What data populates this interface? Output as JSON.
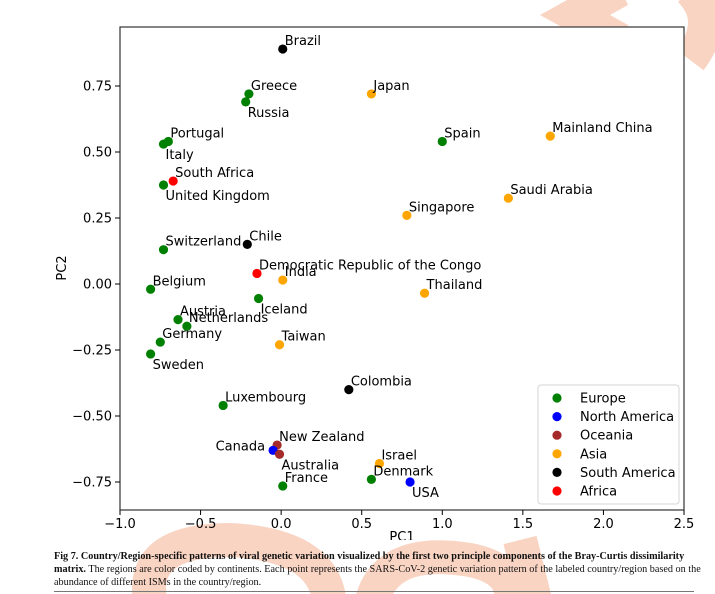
{
  "chart_data": {
    "type": "scatter",
    "title": "",
    "xlabel": "PC1",
    "ylabel": "PC2",
    "xlim": [
      -1.0,
      2.5
    ],
    "ylim": [
      -0.85,
      0.97
    ],
    "xticks": [
      -1.0,
      -0.5,
      0.0,
      0.5,
      1.0,
      1.5,
      2.0,
      2.5
    ],
    "xtick_labels": [
      "−1.0",
      "−0.5",
      "0.0",
      "0.5",
      "1.0",
      "1.5",
      "2.0",
      "2.5"
    ],
    "yticks": [
      0.75,
      0.5,
      0.25,
      0.0,
      -0.25,
      -0.5,
      -0.75
    ],
    "ytick_labels": [
      "0.75",
      "0.50",
      "0.25",
      "0.00",
      "−0.25",
      "−0.50",
      "−0.75"
    ],
    "grid": false,
    "legend_position": "bottom-right",
    "legend": [
      {
        "name": "Europe",
        "color": "#008000"
      },
      {
        "name": "North America",
        "color": "#0000ff"
      },
      {
        "name": "Oceania",
        "color": "#a52a2a"
      },
      {
        "name": "Asia",
        "color": "#ffa500"
      },
      {
        "name": "South America",
        "color": "#000000"
      },
      {
        "name": "Africa",
        "color": "#ff0000"
      }
    ],
    "points": [
      {
        "label": "Brazil",
        "x": 0.01,
        "y": 0.89,
        "group": "South America",
        "label_pos": "ur"
      },
      {
        "label": "Greece",
        "x": -0.2,
        "y": 0.72,
        "group": "Europe",
        "label_pos": "ur"
      },
      {
        "label": "Russia",
        "x": -0.22,
        "y": 0.69,
        "group": "Europe",
        "label_pos": "lr"
      },
      {
        "label": "Japan",
        "x": 0.56,
        "y": 0.72,
        "group": "Asia",
        "label_pos": "ur"
      },
      {
        "label": "Spain",
        "x": 1.0,
        "y": 0.54,
        "group": "Europe",
        "label_pos": "ur"
      },
      {
        "label": "Mainland China",
        "x": 1.67,
        "y": 0.56,
        "group": "Asia",
        "label_pos": "ur"
      },
      {
        "label": "Portugal",
        "x": -0.7,
        "y": 0.54,
        "group": "Europe",
        "label_pos": "ur"
      },
      {
        "label": "Italy",
        "x": -0.73,
        "y": 0.53,
        "group": "Europe",
        "label_pos": "lr"
      },
      {
        "label": "South Africa",
        "x": -0.67,
        "y": 0.39,
        "group": "Africa",
        "label_pos": "ur"
      },
      {
        "label": "United Kingdom",
        "x": -0.73,
        "y": 0.375,
        "group": "Europe",
        "label_pos": "lr"
      },
      {
        "label": "Singapore",
        "x": 0.78,
        "y": 0.26,
        "group": "Asia",
        "label_pos": "ur"
      },
      {
        "label": "Saudi Arabia",
        "x": 1.41,
        "y": 0.325,
        "group": "Asia",
        "label_pos": "ur"
      },
      {
        "label": "Switzerland",
        "x": -0.73,
        "y": 0.13,
        "group": "Europe",
        "label_pos": "ur"
      },
      {
        "label": "Chile",
        "x": -0.21,
        "y": 0.15,
        "group": "South America",
        "label_pos": "ur"
      },
      {
        "label": "Democratic Republic of the Congo",
        "x": -0.15,
        "y": 0.04,
        "group": "Africa",
        "label_pos": "ur"
      },
      {
        "label": "India",
        "x": 0.01,
        "y": 0.015,
        "group": "Asia",
        "label_pos": "ur"
      },
      {
        "label": "Belgium",
        "x": -0.81,
        "y": -0.02,
        "group": "Europe",
        "label_pos": "ur"
      },
      {
        "label": "Iceland",
        "x": -0.14,
        "y": -0.055,
        "group": "Europe",
        "label_pos": "lr"
      },
      {
        "label": "Thailand",
        "x": 0.89,
        "y": -0.035,
        "group": "Asia",
        "label_pos": "ur"
      },
      {
        "label": "Austria",
        "x": -0.64,
        "y": -0.135,
        "group": "Europe",
        "label_pos": "ur"
      },
      {
        "label": "Netherlands",
        "x": -0.585,
        "y": -0.16,
        "group": "Europe",
        "label_pos": "ur"
      },
      {
        "label": "Germany",
        "x": -0.75,
        "y": -0.22,
        "group": "Europe",
        "label_pos": "ur"
      },
      {
        "label": "Sweden",
        "x": -0.81,
        "y": -0.265,
        "group": "Europe",
        "label_pos": "lr"
      },
      {
        "label": "Taiwan",
        "x": -0.01,
        "y": -0.23,
        "group": "Asia",
        "label_pos": "ur"
      },
      {
        "label": "Colombia",
        "x": 0.42,
        "y": -0.4,
        "group": "South America",
        "label_pos": "ur"
      },
      {
        "label": "Luxembourg",
        "x": -0.36,
        "y": -0.46,
        "group": "Europe",
        "label_pos": "ur"
      },
      {
        "label": "New Zealand",
        "x": -0.025,
        "y": -0.61,
        "group": "Oceania",
        "label_pos": "ur"
      },
      {
        "label": "Canada",
        "x": -0.05,
        "y": -0.63,
        "group": "North America",
        "label_pos": "l"
      },
      {
        "label": "Australia",
        "x": -0.01,
        "y": -0.645,
        "group": "Oceania",
        "label_pos": "lr"
      },
      {
        "label": "Israel",
        "x": 0.61,
        "y": -0.68,
        "group": "Asia",
        "label_pos": "ur"
      },
      {
        "label": "Denmark",
        "x": 0.56,
        "y": -0.74,
        "group": "Europe",
        "label_pos": "ur"
      },
      {
        "label": "USA",
        "x": 0.8,
        "y": -0.75,
        "group": "North America",
        "label_pos": "lr"
      },
      {
        "label": "France",
        "x": 0.01,
        "y": -0.765,
        "group": "Europe",
        "label_pos": "ur"
      }
    ]
  },
  "caption": {
    "fig_label": "Fig 7.",
    "bold_title": "Country/Region-specific patterns of viral genetic variation visualized by the first two principle components of the Bray-Curtis dissimilarity matrix.",
    "body": "The regions are color coded by continents. Each point represents the SARS-CoV-2 genetic variation pattern of the labeled country/region based on the abundance of different ISMs in the country/region."
  },
  "watermark_color": "#f8c8b4"
}
